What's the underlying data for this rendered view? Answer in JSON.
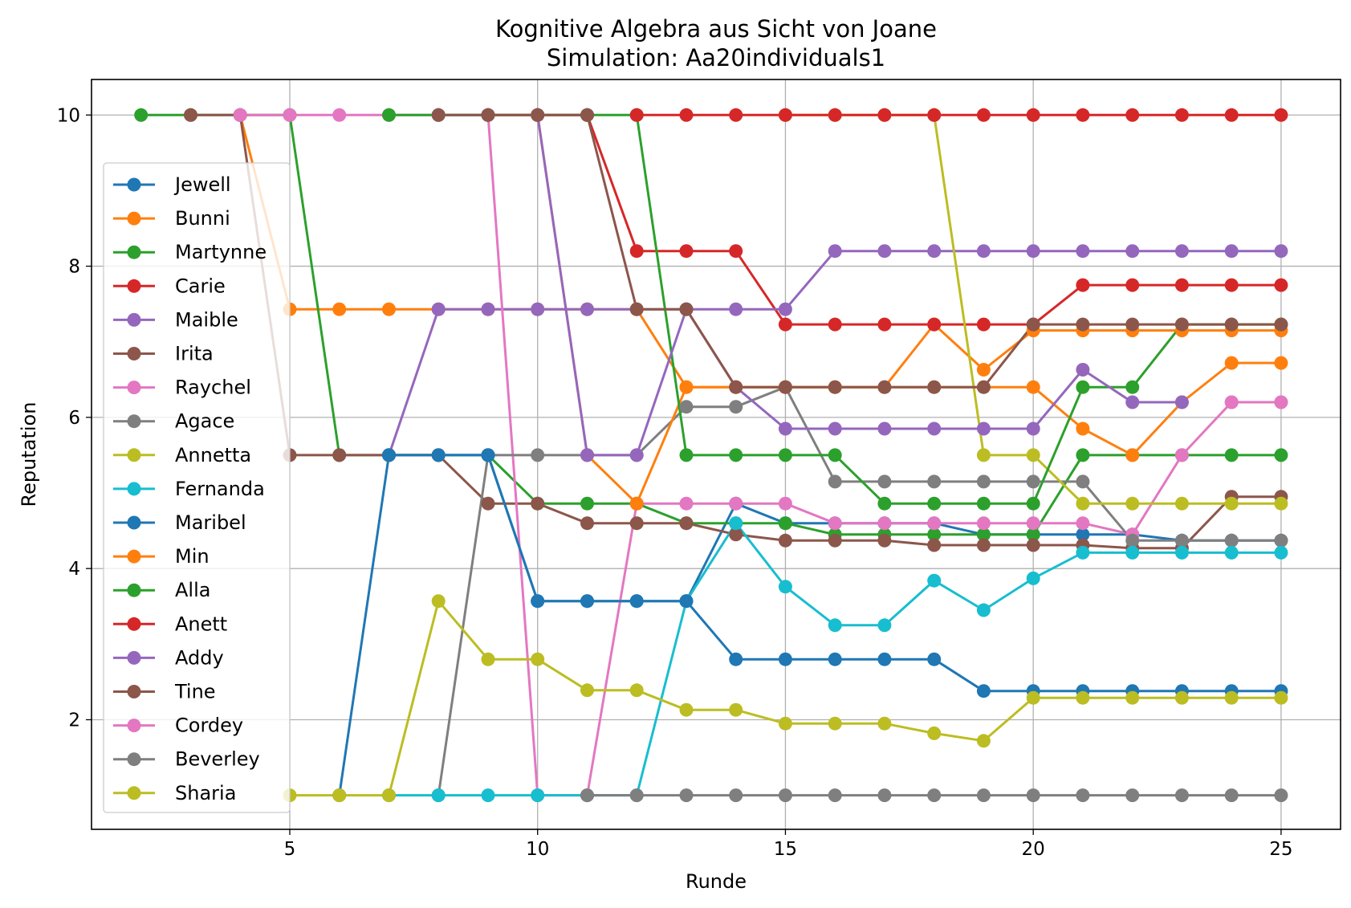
{
  "chart_data": {
    "type": "line",
    "title": "Kognitive Algebra aus Sicht von Joane",
    "subtitle": "Simulation: Aa20individuals1",
    "xlabel": "Runde",
    "ylabel": "Reputation",
    "xlim": [
      1,
      26.2
    ],
    "ylim": [
      0.55,
      10.47
    ],
    "xticks": [
      "5",
      "10",
      "15",
      "20",
      "25"
    ],
    "yticks": [
      "2",
      "4",
      "6",
      "8",
      "10"
    ],
    "grid": true,
    "legend_position": "left",
    "series": [
      {
        "name": "Jewell",
        "color": "#1f77b4",
        "x": [
          7,
          8,
          9,
          10,
          11,
          12,
          13,
          14,
          15,
          16,
          17,
          18,
          19,
          20,
          21,
          22,
          23,
          24,
          25
        ],
        "y": [
          5.5,
          5.5,
          5.5,
          3.57,
          3.57,
          3.57,
          3.57,
          4.86,
          4.6,
          4.6,
          4.6,
          4.6,
          4.45,
          4.45,
          4.45,
          4.45,
          4.37,
          4.37,
          4.37
        ]
      },
      {
        "name": "Bunni",
        "color": "#ff7f0e",
        "x": [
          4,
          5,
          6,
          7,
          8,
          9,
          10,
          11,
          12,
          13,
          14,
          15,
          16,
          17,
          18,
          19,
          20,
          21,
          22,
          23,
          24,
          25
        ],
        "y": [
          10,
          7.43,
          7.43,
          7.43,
          7.43,
          7.43,
          7.43,
          7.43,
          7.43,
          6.4,
          6.4,
          6.4,
          6.4,
          6.4,
          7.23,
          6.63,
          7.15,
          7.15,
          7.15,
          7.15,
          7.15,
          7.15
        ]
      },
      {
        "name": "Martynne",
        "color": "#2ca02c",
        "x": [
          2,
          3,
          4,
          5,
          6,
          7,
          8,
          9,
          10,
          11,
          12,
          13,
          14,
          15,
          16,
          17,
          18,
          19,
          20,
          21,
          22,
          23,
          24,
          25
        ],
        "y": [
          10,
          10,
          10,
          10,
          5.5,
          5.5,
          5.5,
          5.5,
          4.86,
          4.86,
          4.86,
          4.6,
          4.6,
          4.6,
          4.45,
          4.45,
          4.45,
          4.45,
          4.45,
          5.5,
          5.5,
          5.5,
          5.5,
          5.5
        ]
      },
      {
        "name": "Carie",
        "color": "#d62728",
        "x": [
          9,
          10,
          11,
          12,
          13,
          14,
          15,
          16,
          17,
          18,
          19,
          20,
          21,
          22,
          23,
          24,
          25
        ],
        "y": [
          10,
          10,
          10,
          8.2,
          8.2,
          8.2,
          7.23,
          7.23,
          7.23,
          7.23,
          7.23,
          7.23,
          7.75,
          7.75,
          7.75,
          7.75,
          7.75
        ]
      },
      {
        "name": "Maible",
        "color": "#9467bd",
        "x": [
          7,
          8,
          9,
          10,
          11,
          12,
          13,
          14,
          15,
          16,
          17,
          18,
          19,
          20,
          21,
          22,
          23,
          24,
          25
        ],
        "y": [
          5.5,
          7.43,
          7.43,
          7.43,
          7.43,
          7.43,
          7.43,
          7.43,
          7.43,
          8.2,
          8.2,
          8.2,
          8.2,
          8.2,
          8.2,
          8.2,
          8.2,
          8.2,
          8.2
        ]
      },
      {
        "name": "Irita",
        "color": "#8c564b",
        "x": [
          3,
          4,
          5,
          6,
          7,
          8,
          9,
          10,
          11,
          12,
          13,
          14,
          15,
          16,
          17,
          18,
          19,
          20,
          21,
          22,
          23,
          24,
          25
        ],
        "y": [
          10,
          10,
          5.5,
          5.5,
          5.5,
          5.5,
          4.86,
          4.86,
          4.6,
          4.6,
          4.6,
          4.45,
          4.37,
          4.37,
          4.37,
          4.31,
          4.31,
          4.31,
          4.31,
          4.27,
          4.27,
          4.95,
          4.95
        ]
      },
      {
        "name": "Raychel",
        "color": "#e377c2",
        "x": [
          4,
          5,
          6,
          7,
          8,
          9,
          10,
          11,
          12,
          13,
          14,
          15,
          16,
          17,
          18,
          19,
          20,
          21,
          22,
          23,
          24,
          25
        ],
        "y": [
          10,
          10,
          10,
          10,
          10,
          10,
          1,
          1,
          4.86,
          4.86,
          4.86,
          4.86,
          4.6,
          4.6,
          4.6,
          4.6,
          4.6,
          4.6,
          4.45,
          5.5,
          6.2,
          6.2
        ]
      },
      {
        "name": "Agace",
        "color": "#7f7f7f",
        "x": [
          8,
          9,
          10,
          11,
          12,
          13,
          14,
          15,
          16,
          17,
          18,
          19,
          20,
          21,
          22,
          23,
          24,
          25
        ],
        "y": [
          1,
          5.5,
          5.5,
          5.5,
          5.5,
          6.14,
          6.14,
          6.4,
          5.15,
          5.15,
          5.15,
          5.15,
          5.15,
          5.15,
          4.37,
          4.37,
          4.37,
          4.37
        ]
      },
      {
        "name": "Annetta",
        "color": "#bcbd22",
        "x": [
          15,
          16,
          17,
          18,
          19,
          20,
          21,
          22,
          23,
          24,
          25
        ],
        "y": [
          10,
          10,
          10,
          10,
          5.5,
          5.5,
          4.86,
          4.86,
          4.86,
          4.86,
          4.86
        ]
      },
      {
        "name": "Fernanda",
        "color": "#17becf",
        "x": [
          7,
          8,
          9,
          10,
          11,
          12,
          13,
          14,
          15,
          16,
          17,
          18,
          19,
          20,
          21,
          22,
          23,
          24,
          25
        ],
        "y": [
          1,
          1,
          1,
          1,
          1,
          1,
          3.57,
          4.6,
          3.76,
          3.25,
          3.25,
          3.84,
          3.45,
          3.87,
          4.21,
          4.21,
          4.21,
          4.21,
          4.21
        ]
      },
      {
        "name": "Maribel",
        "color": "#1f77b4",
        "x": [
          6,
          7,
          8,
          9,
          10,
          11,
          12,
          13,
          14,
          15,
          16,
          17,
          18,
          19,
          20,
          21,
          22,
          23,
          24,
          25
        ],
        "y": [
          1,
          5.5,
          5.5,
          5.5,
          3.57,
          3.57,
          3.57,
          3.57,
          2.8,
          2.8,
          2.8,
          2.8,
          2.8,
          2.38,
          2.38,
          2.38,
          2.38,
          2.38,
          2.38,
          2.38
        ]
      },
      {
        "name": "Min",
        "color": "#ff7f0e",
        "x": [
          10,
          11,
          12,
          13,
          14,
          15,
          16,
          17,
          18,
          19,
          20,
          21,
          22,
          23,
          24,
          25
        ],
        "y": [
          10,
          5.5,
          4.86,
          6.4,
          6.4,
          6.4,
          6.4,
          6.4,
          6.4,
          6.4,
          6.4,
          5.85,
          5.5,
          6.2,
          6.72,
          6.72
        ]
      },
      {
        "name": "Alla",
        "color": "#2ca02c",
        "x": [
          7,
          8,
          9,
          10,
          11,
          12,
          13,
          14,
          15,
          16,
          17,
          18,
          19,
          20,
          21,
          22,
          23,
          24,
          25
        ],
        "y": [
          10,
          10,
          10,
          10,
          10,
          10,
          5.5,
          5.5,
          5.5,
          5.5,
          4.86,
          4.86,
          4.86,
          4.86,
          6.4,
          6.4,
          7.23,
          7.23,
          7.23
        ]
      },
      {
        "name": "Anett",
        "color": "#d62728",
        "x": [
          12,
          13,
          14,
          15,
          16,
          17,
          18,
          19,
          20,
          21,
          22,
          23,
          24,
          25
        ],
        "y": [
          10,
          10,
          10,
          10,
          10,
          10,
          10,
          10,
          10,
          10,
          10,
          10,
          10,
          10
        ]
      },
      {
        "name": "Addy",
        "color": "#9467bd",
        "x": [
          10,
          11,
          12,
          13,
          14,
          15,
          16,
          17,
          18,
          19,
          20,
          21,
          22,
          23
        ],
        "y": [
          10,
          5.5,
          5.5,
          7.43,
          6.4,
          5.85,
          5.85,
          5.85,
          5.85,
          5.85,
          5.85,
          6.63,
          6.2,
          6.2
        ]
      },
      {
        "name": "Tine",
        "color": "#8c564b",
        "x": [
          8,
          9,
          10,
          11,
          12,
          13,
          14,
          15,
          16,
          17,
          18,
          19,
          20,
          21,
          22,
          23,
          24,
          25
        ],
        "y": [
          10,
          10,
          10,
          10,
          7.43,
          7.43,
          6.4,
          6.4,
          6.4,
          6.4,
          6.4,
          6.4,
          7.23,
          7.23,
          7.23,
          7.23,
          7.23,
          7.23
        ]
      },
      {
        "name": "Cordey",
        "color": "#e377c2",
        "x": [
          24,
          25
        ],
        "y": [
          6.2,
          6.2
        ]
      },
      {
        "name": "Beverley",
        "color": "#7f7f7f",
        "x": [
          11,
          12,
          13,
          14,
          15,
          16,
          17,
          18,
          19,
          20,
          21,
          22,
          23,
          24,
          25
        ],
        "y": [
          1,
          1,
          1,
          1,
          1,
          1,
          1,
          1,
          1,
          1,
          1,
          1,
          1,
          1,
          1
        ]
      },
      {
        "name": "Sharia",
        "color": "#bcbd22",
        "x": [
          5,
          6,
          7,
          8,
          9,
          10,
          11,
          12,
          13,
          14,
          15,
          16,
          17,
          18,
          19,
          20,
          21,
          22,
          23,
          24,
          25
        ],
        "y": [
          1,
          1,
          1,
          3.57,
          2.8,
          2.8,
          2.39,
          2.39,
          2.13,
          2.13,
          1.95,
          1.95,
          1.95,
          1.82,
          1.72,
          2.29,
          2.29,
          2.29,
          2.29,
          2.29,
          2.29
        ]
      }
    ]
  }
}
